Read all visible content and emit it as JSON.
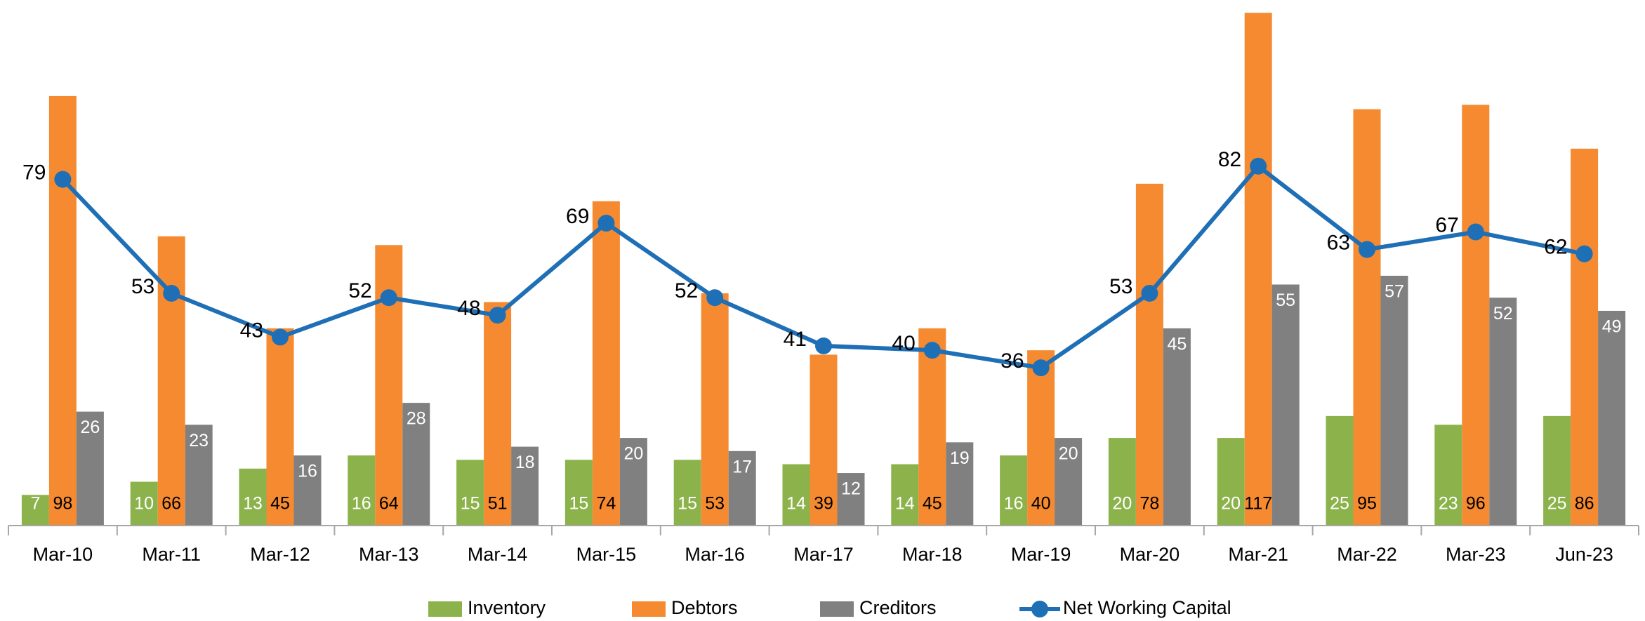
{
  "chart_data": {
    "type": "bar",
    "categories": [
      "Mar-10",
      "Mar-11",
      "Mar-12",
      "Mar-13",
      "Mar-14",
      "Mar-15",
      "Mar-16",
      "Mar-17",
      "Mar-18",
      "Mar-19",
      "Mar-20",
      "Mar-21",
      "Mar-22",
      "Mar-23",
      "Jun-23"
    ],
    "series": [
      {
        "name": "Inventory",
        "color": "#8cb34b",
        "label_color": "#ffffff",
        "values": [
          7,
          10,
          13,
          16,
          15,
          15,
          15,
          14,
          14,
          16,
          20,
          20,
          25,
          23,
          25
        ]
      },
      {
        "name": "Debtors",
        "color": "#f58a30",
        "label_color": "#000000",
        "values": [
          98,
          66,
          45,
          64,
          51,
          74,
          53,
          39,
          45,
          40,
          78,
          117,
          95,
          96,
          86
        ]
      },
      {
        "name": "Creditors",
        "color": "#808080",
        "label_color": "#ffffff",
        "values": [
          26,
          23,
          16,
          28,
          18,
          20,
          17,
          12,
          19,
          20,
          45,
          55,
          57,
          52,
          49
        ]
      },
      {
        "name": "Net Working Capital",
        "color": "#1f6fb6",
        "type": "line",
        "values": [
          79,
          53,
          43,
          52,
          48,
          69,
          52,
          41,
          40,
          36,
          53,
          82,
          63,
          67,
          62
        ]
      }
    ],
    "ylim": [
      0,
      118
    ],
    "grid": false,
    "legend": "bottom"
  }
}
